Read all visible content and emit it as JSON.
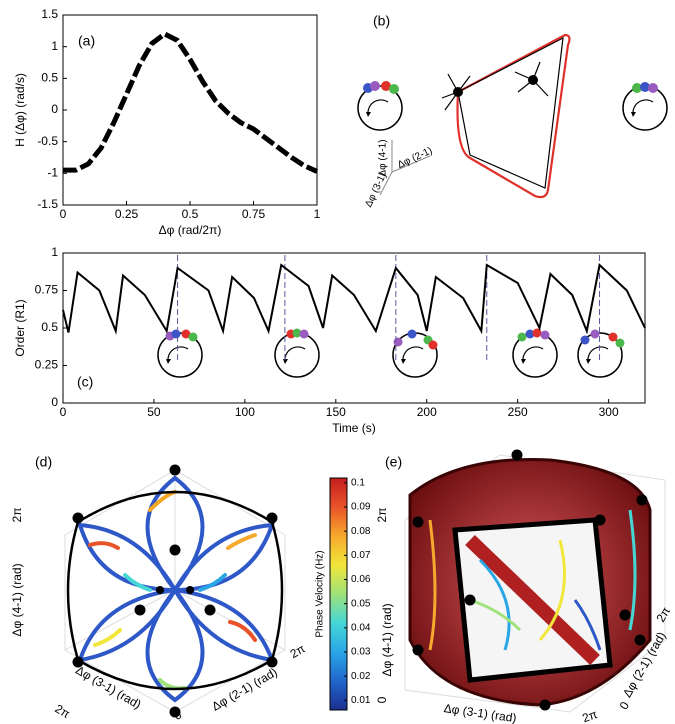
{
  "chart_data": [
    {
      "type": "line",
      "label": "(a)",
      "xlabel": "Δφ (rad/2π)",
      "ylabel": "H (Δφ) (rad/s)",
      "x": [
        0,
        0.05,
        0.1,
        0.15,
        0.2,
        0.25,
        0.3,
        0.35,
        0.4,
        0.45,
        0.5,
        0.55,
        0.6,
        0.65,
        0.7,
        0.75,
        0.8,
        0.85,
        0.9,
        0.95,
        1
      ],
      "values": [
        -0.95,
        -0.95,
        -0.85,
        -0.6,
        -0.2,
        0.25,
        0.7,
        1.05,
        1.2,
        1.1,
        0.8,
        0.45,
        0.15,
        -0.05,
        -0.2,
        -0.3,
        -0.45,
        -0.6,
        -0.75,
        -0.88,
        -0.97
      ],
      "color": "#000000",
      "line_style": "dashed",
      "xlim": [
        0,
        1
      ],
      "xticks": [
        0,
        0.25,
        0.5,
        0.75,
        1
      ],
      "ylim": [
        -1.5,
        1.5
      ],
      "yticks": [
        -1.5,
        -1,
        -0.5,
        0,
        0.5,
        1,
        1.5
      ]
    },
    {
      "type": "line",
      "label": "(c)",
      "xlabel": "Time (s)",
      "ylabel": "Order (R1)",
      "x": [
        0,
        3,
        8,
        20,
        29,
        33,
        45,
        57,
        63,
        80,
        88,
        93,
        105,
        113,
        120,
        135,
        143,
        148,
        160,
        172,
        183,
        195,
        200,
        205,
        220,
        230,
        233,
        250,
        262,
        268,
        280,
        288,
        295,
        310,
        320
      ],
      "values": [
        0.62,
        0.47,
        0.87,
        0.75,
        0.48,
        0.85,
        0.72,
        0.48,
        0.9,
        0.75,
        0.48,
        0.84,
        0.7,
        0.48,
        0.92,
        0.78,
        0.5,
        0.85,
        0.72,
        0.48,
        0.9,
        0.72,
        0.48,
        0.84,
        0.7,
        0.48,
        0.92,
        0.8,
        0.5,
        0.86,
        0.72,
        0.48,
        0.92,
        0.75,
        0.5
      ],
      "color": "#000000",
      "line_style": "solid",
      "event_lines": [
        63,
        122,
        183,
        233,
        295
      ],
      "xlim": [
        0,
        320
      ],
      "xticks": [
        0,
        50,
        100,
        150,
        200,
        250,
        300
      ],
      "ylim": [
        0,
        1
      ],
      "yticks": [
        0,
        0.25,
        0.5,
        0.75,
        1
      ]
    },
    {
      "type": "colorbar",
      "ylabel": "Phase Velocity (Hz)",
      "ylim": [
        0.006,
        0.102
      ],
      "yticks": [
        0.01,
        0.02,
        0.03,
        0.04,
        0.05,
        0.06,
        0.07,
        0.08,
        0.09,
        0.1
      ],
      "colormap": [
        "#1b2f8f",
        "#2266cc",
        "#2aa6e6",
        "#45d6d6",
        "#9ee27a",
        "#f1e63a",
        "#f6a92c",
        "#e9532a",
        "#c41e1e"
      ]
    }
  ],
  "panels": {
    "b": {
      "label": "(b)",
      "axes": [
        "Δφ (4-1)",
        "Δφ (2-1)",
        "Δφ (3-1)"
      ]
    },
    "d": {
      "label": "(d)",
      "axes": [
        "Δφ (4-1) (rad)",
        "Δφ (3-1) (rad)",
        "Δφ (2-1) (rad)"
      ],
      "ticks": [
        "2π",
        "2π",
        "0",
        "2π"
      ]
    },
    "e": {
      "label": "(e)",
      "axes": [
        "Δφ (4-1) (rad)",
        "Δφ (3-1) (rad)",
        "Δφ (2-1) (rad)"
      ],
      "ticks": [
        "2π",
        "0",
        "2π",
        "0",
        "2π"
      ]
    }
  }
}
